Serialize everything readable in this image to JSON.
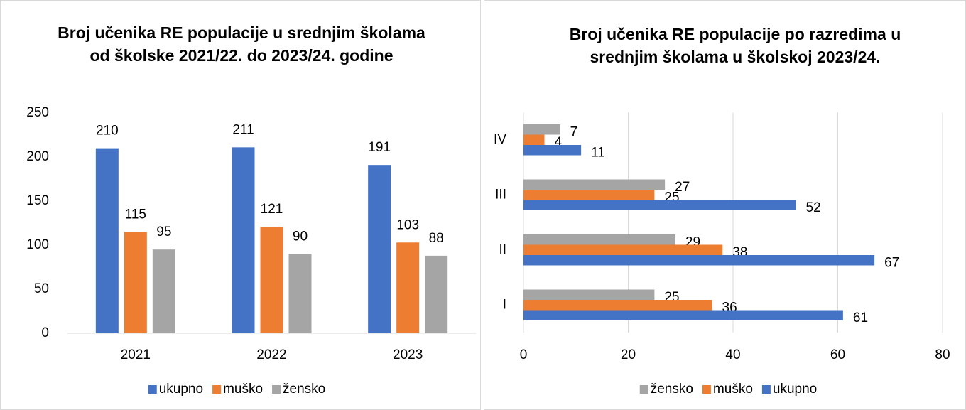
{
  "chart_data": [
    {
      "type": "bar",
      "title": "Broj učenika RE populacije u srednjim školama od školske 2021/22. do 2023/24. godine",
      "categories": [
        "2021",
        "2022",
        "2023"
      ],
      "series": [
        {
          "name": "ukupno",
          "color": "#4472c4",
          "values": [
            210,
            211,
            191
          ]
        },
        {
          "name": "muško",
          "color": "#ed7d31",
          "values": [
            115,
            121,
            103
          ]
        },
        {
          "name": "žensko",
          "color": "#a5a5a5",
          "values": [
            95,
            90,
            88
          ]
        }
      ],
      "ylim": [
        0,
        250
      ],
      "yticks": [
        0,
        50,
        100,
        150,
        200,
        250
      ],
      "grid": false,
      "legend": "bottom"
    },
    {
      "type": "hbar",
      "title": "Broj učenika RE populacije po razredima u srednjim školama u školskoj 2023/24.",
      "categories": [
        "I",
        "II",
        "III",
        "IV"
      ],
      "series": [
        {
          "name": "žensko",
          "color": "#a5a5a5",
          "values": [
            25,
            29,
            27,
            7
          ]
        },
        {
          "name": "muško",
          "color": "#ed7d31",
          "values": [
            36,
            38,
            25,
            4
          ]
        },
        {
          "name": "ukupno",
          "color": "#4472c4",
          "values": [
            61,
            67,
            52,
            11
          ]
        }
      ],
      "xlim": [
        0,
        80
      ],
      "xticks": [
        0,
        20,
        40,
        60,
        80
      ],
      "grid": true,
      "legend": "bottom"
    }
  ]
}
